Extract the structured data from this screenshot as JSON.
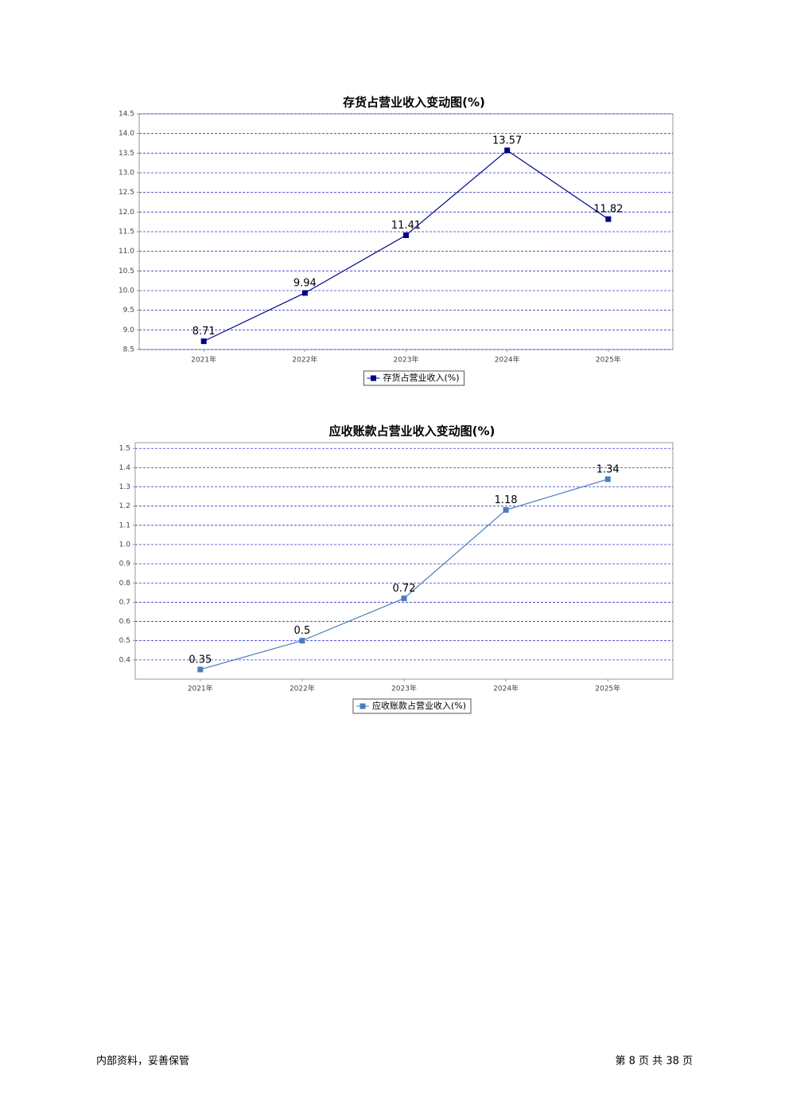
{
  "chart_data": [
    {
      "type": "line",
      "title": "存货占营业收入变动图(%)",
      "categories": [
        "2021年",
        "2022年",
        "2023年",
        "2024年",
        "2025年"
      ],
      "series": [
        {
          "name": "存货占营业收入(%)",
          "color": "#00008b",
          "values": [
            8.71,
            9.94,
            11.41,
            13.57,
            11.82
          ]
        }
      ],
      "ylim": [
        8.5,
        14.5
      ],
      "yticks": [
        8.5,
        {
          "value": 9,
          "label": "9.0"
        },
        9.5,
        {
          "value": 10,
          "label": "10.0"
        },
        10.5,
        {
          "value": 11,
          "label": "11.0"
        },
        11.5,
        {
          "value": 12,
          "label": "12.0"
        },
        12.5,
        {
          "value": 13,
          "label": "13.0"
        },
        13.5,
        {
          "value": 14,
          "label": "14.0"
        },
        14.5
      ],
      "grid": true
    },
    {
      "type": "line",
      "title": "应收账款占营业收入变动图(%)",
      "categories": [
        "2021年",
        "2022年",
        "2023年",
        "2024年",
        "2025年"
      ],
      "series": [
        {
          "name": "应收账款占营业收入(%)",
          "color": "#4a7ebb",
          "values": [
            0.35,
            0.5,
            0.72,
            1.18,
            1.34
          ]
        }
      ],
      "ylim": [
        0.3,
        1.53
      ],
      "yticks": [
        0.4,
        0.5,
        0.6,
        0.7,
        0.8,
        0.9,
        {
          "value": 1,
          "label": "1.0"
        },
        1.1,
        1.2,
        1.3,
        1.4,
        1.5
      ],
      "grid": true
    }
  ],
  "footer": {
    "left": "内部资料，妥善保管",
    "right": "第 8 页 共 38 页"
  }
}
